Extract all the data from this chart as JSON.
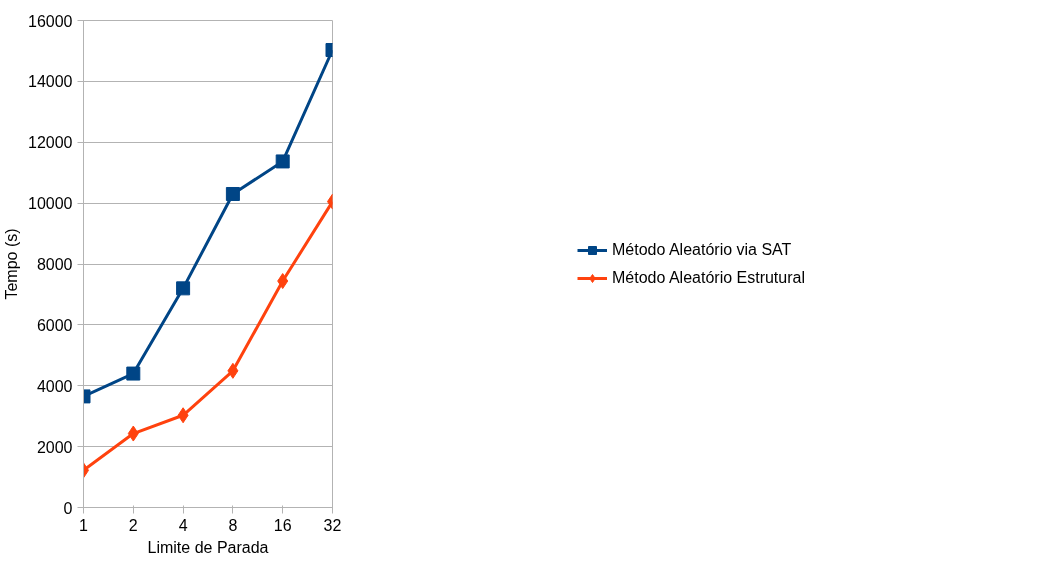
{
  "chart_data": {
    "type": "line",
    "xlabel": "Limite de Parada",
    "ylabel": "Tempo (s)",
    "categories": [
      "1",
      "2",
      "4",
      "8",
      "16",
      "32"
    ],
    "series": [
      {
        "name": "Método Aleatório via SAT",
        "color": "#004586",
        "marker": "square",
        "values": [
          3650,
          4400,
          7200,
          10300,
          11370,
          15030
        ]
      },
      {
        "name": "Método Aleatório Estrutural",
        "color": "#ff420e",
        "marker": "diamond",
        "values": [
          1220,
          2430,
          3030,
          4490,
          7440,
          10050
        ]
      }
    ],
    "ylim": [
      0,
      16000
    ],
    "yticks": [
      0,
      2000,
      4000,
      6000,
      8000,
      10000,
      12000,
      14000,
      16000
    ],
    "grid": "y",
    "legend": "right",
    "line_style": "solid"
  }
}
